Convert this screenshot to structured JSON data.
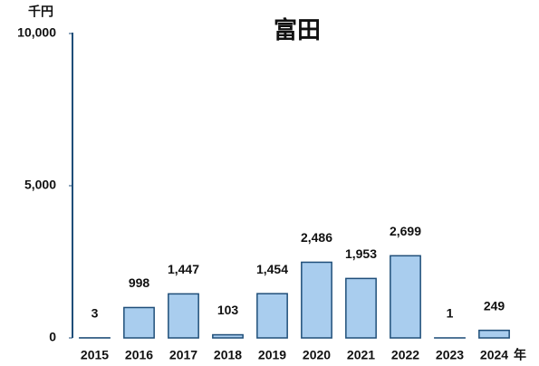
{
  "chart_data": {
    "type": "bar",
    "title": "富田",
    "y_label": "千円",
    "x_label": "年",
    "categories": [
      "2015",
      "2016",
      "2017",
      "2018",
      "2019",
      "2020",
      "2021",
      "2022",
      "2023",
      "2024"
    ],
    "values": [
      3,
      998,
      1447,
      103,
      1454,
      2486,
      1953,
      2699,
      1,
      249
    ],
    "value_labels": [
      "3",
      "998",
      "1,447",
      "103",
      "1,454",
      "2,486",
      "1,953",
      "2,699",
      "1",
      "249"
    ],
    "color": "#a9cdee",
    "edge_color": "#1f4e79",
    "ylim": [
      0,
      10000
    ],
    "yticks": [
      0,
      {
        "value": 5000,
        "label": "5,000"
      },
      {
        "value": 10000,
        "label": "10,000"
      }
    ],
    "grid": false
  }
}
